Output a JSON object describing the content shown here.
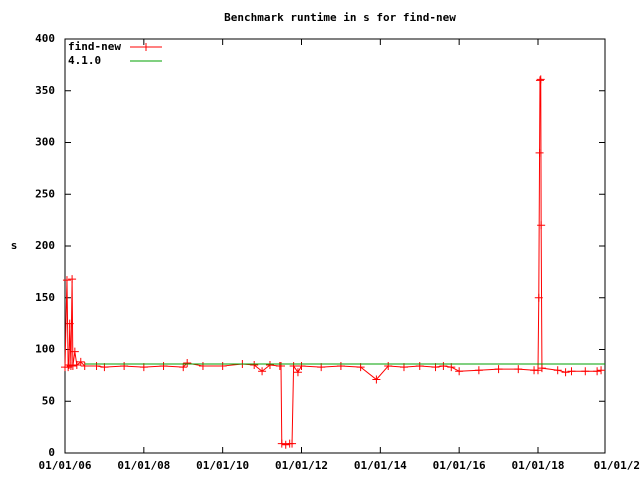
{
  "chart_data": {
    "type": "line",
    "title": "Benchmark runtime in s for find-new",
    "ylabel": "s",
    "xlim": [
      2006,
      2019.7
    ],
    "ylim": [
      0,
      400
    ],
    "xticks": [
      {
        "value": 2006,
        "label": "01/01/06"
      },
      {
        "value": 2008,
        "label": "01/01/08"
      },
      {
        "value": 2010,
        "label": "01/01/10"
      },
      {
        "value": 2012,
        "label": "01/01/12"
      },
      {
        "value": 2014,
        "label": "01/01/14"
      },
      {
        "value": 2016,
        "label": "01/01/16"
      },
      {
        "value": 2018,
        "label": "01/01/18"
      },
      {
        "value": 2020,
        "label": "01/01/2"
      }
    ],
    "yticks": [
      0,
      50,
      100,
      150,
      200,
      250,
      300,
      350,
      400
    ],
    "series": [
      {
        "name": "find-new",
        "color": "#ff0000",
        "markers": true,
        "x": [
          2006.0,
          2006.05,
          2006.08,
          2006.1,
          2006.12,
          2006.15,
          2006.18,
          2006.2,
          2006.25,
          2006.3,
          2006.4,
          2006.5,
          2006.8,
          2007.0,
          2007.5,
          2008.0,
          2008.5,
          2009.0,
          2009.1,
          2009.5,
          2010.0,
          2010.5,
          2010.8,
          2011.0,
          2011.2,
          2011.45,
          2011.48,
          2011.5,
          2011.6,
          2011.7,
          2011.76,
          2011.8,
          2011.91,
          2012.0,
          2012.5,
          2013.0,
          2013.5,
          2013.9,
          2014.2,
          2014.6,
          2015.0,
          2015.4,
          2015.6,
          2015.8,
          2016.0,
          2016.5,
          2017.0,
          2017.5,
          2017.9,
          2018.0,
          2018.02,
          2018.04,
          2018.05,
          2018.07,
          2018.08,
          2018.1,
          2018.5,
          2018.7,
          2018.85,
          2019.2,
          2019.5,
          2019.6
        ],
        "values": [
          83,
          167,
          83,
          85,
          125,
          84,
          168,
          84,
          98,
          85,
          88,
          84,
          84,
          83,
          84,
          83,
          84,
          83,
          87,
          84,
          84,
          86,
          85,
          79,
          85,
          84,
          84,
          9,
          8,
          9,
          9,
          84,
          78,
          84,
          83,
          84,
          83,
          71,
          84,
          83,
          84,
          83,
          84,
          83,
          79,
          80,
          81,
          81,
          80,
          80,
          150,
          290,
          360,
          361,
          220,
          82,
          80,
          78,
          79,
          79,
          79,
          80
        ]
      },
      {
        "name": "4.1.0",
        "color": "#00a000",
        "markers": false,
        "x": [
          2006.5,
          2019.7
        ],
        "values": [
          86,
          86
        ]
      }
    ]
  }
}
